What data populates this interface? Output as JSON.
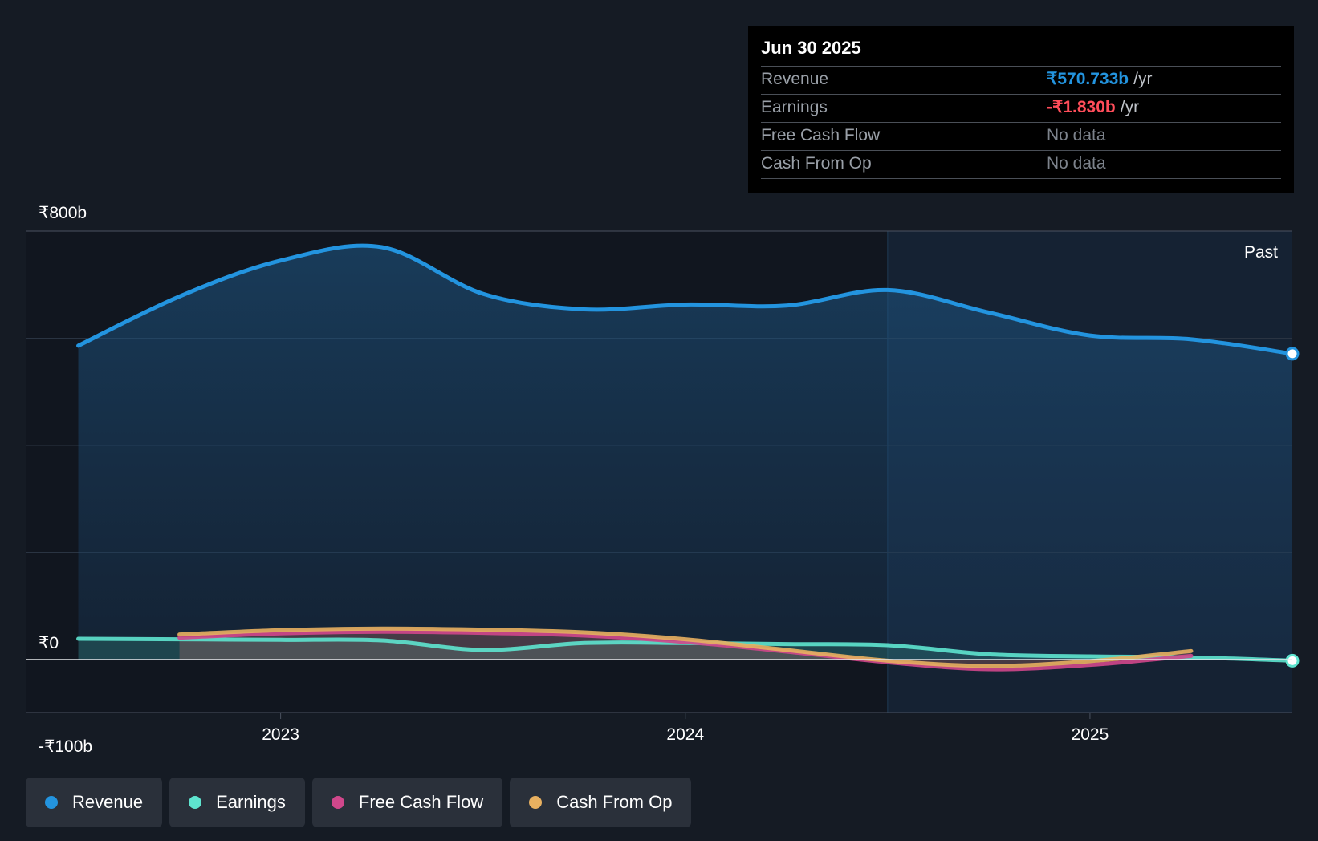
{
  "tooltip": {
    "date": "Jun 30 2025",
    "rows": [
      {
        "label": "Revenue",
        "value": "₹570.733b",
        "unit": "/yr",
        "color": "#2394df"
      },
      {
        "label": "Earnings",
        "value": "-₹1.830b",
        "unit": "/yr",
        "color": "#ff4d5a"
      },
      {
        "label": "Free Cash Flow",
        "value": "No data",
        "unit": ""
      },
      {
        "label": "Cash From Op",
        "value": "No data",
        "unit": ""
      }
    ]
  },
  "legend": [
    {
      "label": "Revenue",
      "color": "#2394df"
    },
    {
      "label": "Earnings",
      "color": "#5ee4cf"
    },
    {
      "label": "Free Cash Flow",
      "color": "#d0478b"
    },
    {
      "label": "Cash From Op",
      "color": "#e8b060"
    }
  ],
  "chart_data": {
    "type": "area",
    "y_tick_labels": [
      "₹800b",
      "₹0",
      "-₹100b"
    ],
    "y_ticks": [
      800,
      0,
      -100
    ],
    "ylim": [
      -100,
      800
    ],
    "x_tick_labels": [
      "2023",
      "2024",
      "2025"
    ],
    "x_ticks": [
      2023.0,
      2024.0,
      2025.0
    ],
    "xlim": [
      2022.37,
      2025.5
    ],
    "past_label": "Past",
    "past_start": 2024.5,
    "grid": true,
    "legend_position": "bottom-left",
    "series": [
      {
        "name": "Revenue",
        "color": "#2394df",
        "fill": true,
        "points": [
          [
            2022.5,
            586
          ],
          [
            2022.75,
            678
          ],
          [
            2023.0,
            745
          ],
          [
            2023.25,
            770
          ],
          [
            2023.5,
            683
          ],
          [
            2023.75,
            654
          ],
          [
            2024.0,
            663
          ],
          [
            2024.25,
            661
          ],
          [
            2024.5,
            690
          ],
          [
            2024.75,
            648
          ],
          [
            2025.0,
            605
          ],
          [
            2025.25,
            598
          ],
          [
            2025.5,
            571
          ]
        ]
      },
      {
        "name": "Earnings",
        "color": "#5ee4cf",
        "fill": true,
        "points": [
          [
            2022.5,
            39
          ],
          [
            2022.75,
            38
          ],
          [
            2023.0,
            37
          ],
          [
            2023.25,
            36
          ],
          [
            2023.5,
            18
          ],
          [
            2023.75,
            31
          ],
          [
            2024.0,
            31
          ],
          [
            2024.25,
            29
          ],
          [
            2024.5,
            27
          ],
          [
            2024.75,
            10
          ],
          [
            2025.0,
            6
          ],
          [
            2025.25,
            4
          ],
          [
            2025.5,
            -2
          ]
        ]
      },
      {
        "name": "Free Cash Flow",
        "color": "#d0478b",
        "fill": false,
        "points": [
          [
            2022.75,
            41
          ],
          [
            2023.0,
            49
          ],
          [
            2023.25,
            52
          ],
          [
            2023.5,
            50
          ],
          [
            2023.75,
            45
          ],
          [
            2024.0,
            33
          ],
          [
            2024.25,
            15
          ],
          [
            2024.5,
            -5
          ],
          [
            2024.75,
            -18
          ],
          [
            2025.0,
            -10
          ],
          [
            2025.25,
            7
          ]
        ]
      },
      {
        "name": "Cash From Op",
        "color": "#e8b060",
        "fill": true,
        "points": [
          [
            2022.75,
            47
          ],
          [
            2023.0,
            55
          ],
          [
            2023.25,
            58
          ],
          [
            2023.5,
            56
          ],
          [
            2023.75,
            51
          ],
          [
            2024.0,
            38
          ],
          [
            2024.25,
            18
          ],
          [
            2024.5,
            -2
          ],
          [
            2024.75,
            -12
          ],
          [
            2025.0,
            -3
          ],
          [
            2025.25,
            16
          ]
        ]
      }
    ]
  }
}
